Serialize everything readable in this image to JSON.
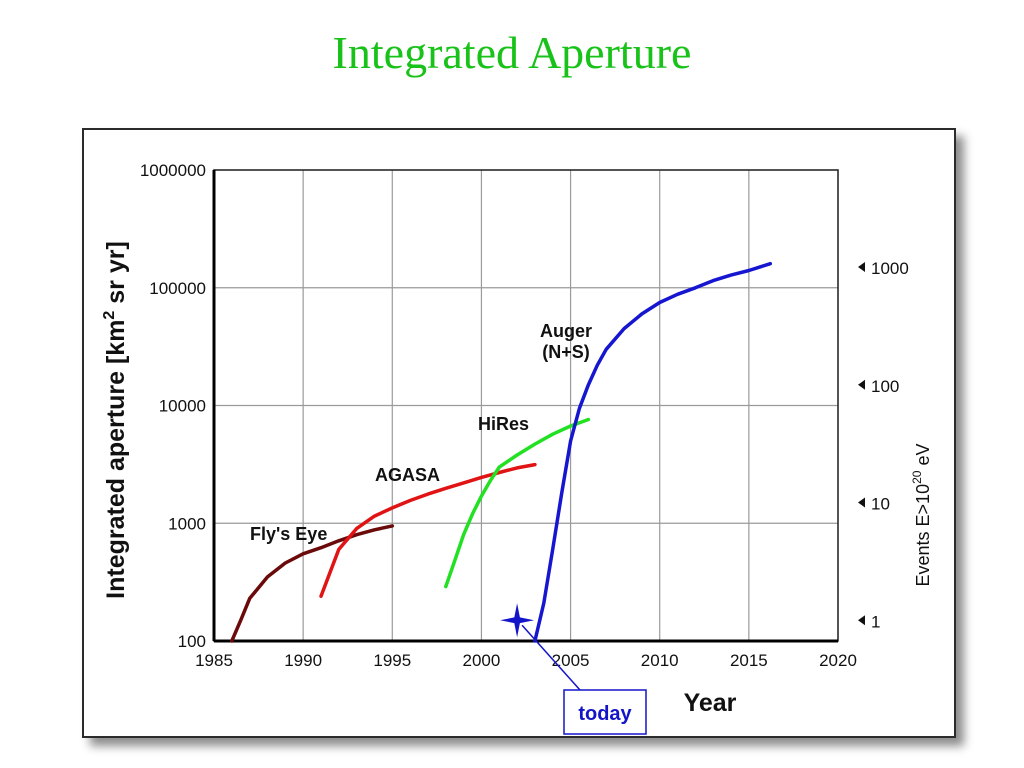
{
  "slide": {
    "title": "Integrated Aperture"
  },
  "chart_data": {
    "type": "line",
    "xlabel": "Year",
    "ylabel": "Integrated aperture [km² sr yr]",
    "ylabel_parts": {
      "before": "Integrated aperture [km",
      "sup": "2",
      "after": " sr yr]"
    },
    "right_axis_label_parts": {
      "before": "Events E>10",
      "sup": "20",
      "after": " eV"
    },
    "xlim": [
      1985,
      2020
    ],
    "ylim": [
      100,
      1000000
    ],
    "y_scale": "log",
    "grid": true,
    "x_ticks": [
      "1985",
      "1990",
      "1995",
      "2000",
      "2005",
      "2010",
      "2015",
      "2020"
    ],
    "y_ticks": [
      "100",
      "1000",
      "10000",
      "100000",
      "1000000"
    ],
    "right_ticks": [
      {
        "label": "1",
        "aperture": 150
      },
      {
        "label": "10",
        "aperture": 1500
      },
      {
        "label": "100",
        "aperture": 15000
      },
      {
        "label": "1000",
        "aperture": 150000
      }
    ],
    "series": [
      {
        "name": "Fly's Eye",
        "color": "#6b0a0a",
        "x": [
          1986,
          1986.5,
          1987,
          1988,
          1989,
          1990,
          1991,
          1992,
          1993,
          1994,
          1995
        ],
        "y": [
          100,
          150,
          230,
          350,
          460,
          550,
          620,
          710,
          800,
          880,
          950
        ]
      },
      {
        "name": "AGASA",
        "color": "#e01414",
        "x": [
          1991,
          1991.5,
          1992,
          1993,
          1994,
          1995,
          1996,
          1997,
          1998,
          1999,
          2000,
          2001,
          2002,
          2003
        ],
        "y": [
          240,
          380,
          600,
          900,
          1150,
          1350,
          1560,
          1770,
          1980,
          2200,
          2450,
          2700,
          2950,
          3150
        ]
      },
      {
        "name": "HiRes",
        "color": "#22e022",
        "x": [
          1998,
          1998.5,
          1999,
          1999.5,
          2000,
          2000.5,
          2001,
          2002,
          2003,
          2004,
          2005,
          2006
        ],
        "y": [
          290,
          480,
          800,
          1200,
          1700,
          2300,
          3000,
          3800,
          4700,
          5700,
          6700,
          7600
        ]
      },
      {
        "name": "Auger (N+S)",
        "label_lines": [
          "Auger",
          "(N+S)"
        ],
        "color": "#1616d0",
        "x": [
          2003,
          2003.5,
          2004,
          2004.5,
          2005,
          2005.5,
          2006,
          2006.5,
          2007,
          2008,
          2009,
          2010,
          2011,
          2012,
          2013,
          2014,
          2015,
          2016.2
        ],
        "y": [
          100,
          210,
          600,
          1800,
          5000,
          9500,
          15000,
          22000,
          30000,
          45000,
          60000,
          75000,
          88000,
          100000,
          115000,
          128000,
          140000,
          160000
        ]
      }
    ],
    "annotation": {
      "text": "today",
      "x": 2002,
      "y": 150,
      "color": "#1414c8"
    }
  }
}
